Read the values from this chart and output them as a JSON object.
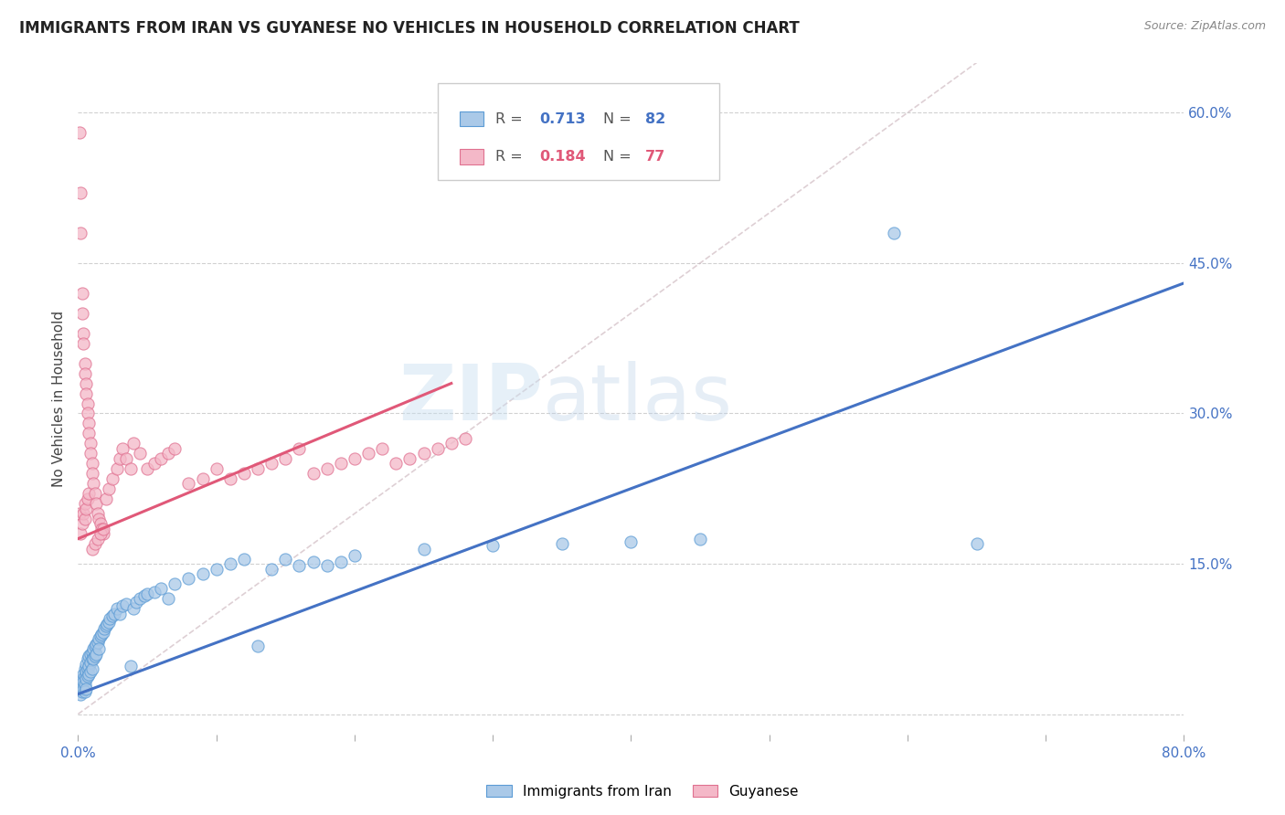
{
  "title": "IMMIGRANTS FROM IRAN VS GUYANESE NO VEHICLES IN HOUSEHOLD CORRELATION CHART",
  "source": "Source: ZipAtlas.com",
  "ylabel": "No Vehicles in Household",
  "color_blue": "#aac9e8",
  "color_blue_dark": "#5b9bd5",
  "color_blue_line": "#4472c4",
  "color_pink": "#f4b8c8",
  "color_pink_dark": "#e07090",
  "color_pink_line": "#e05878",
  "color_diag": "#c8b0b8",
  "watermark_zip": "ZIP",
  "watermark_atlas": "atlas",
  "xlim": [
    0.0,
    0.8
  ],
  "ylim": [
    -0.02,
    0.65
  ],
  "blue_line_x": [
    0.0,
    0.8
  ],
  "blue_line_y": [
    0.02,
    0.43
  ],
  "pink_line_x": [
    0.0,
    0.27
  ],
  "pink_line_y": [
    0.175,
    0.33
  ],
  "diag_line_x": [
    0.0,
    0.65
  ],
  "diag_line_y": [
    0.0,
    0.65
  ],
  "blue_scatter_x": [
    0.001,
    0.002,
    0.002,
    0.003,
    0.003,
    0.003,
    0.004,
    0.004,
    0.004,
    0.005,
    0.005,
    0.005,
    0.005,
    0.006,
    0.006,
    0.006,
    0.006,
    0.007,
    0.007,
    0.007,
    0.008,
    0.008,
    0.008,
    0.009,
    0.009,
    0.009,
    0.01,
    0.01,
    0.01,
    0.011,
    0.011,
    0.012,
    0.012,
    0.013,
    0.013,
    0.014,
    0.015,
    0.015,
    0.016,
    0.017,
    0.018,
    0.019,
    0.02,
    0.021,
    0.022,
    0.023,
    0.025,
    0.026,
    0.028,
    0.03,
    0.032,
    0.035,
    0.038,
    0.04,
    0.042,
    0.045,
    0.048,
    0.05,
    0.055,
    0.06,
    0.065,
    0.07,
    0.08,
    0.09,
    0.1,
    0.11,
    0.12,
    0.13,
    0.14,
    0.15,
    0.16,
    0.17,
    0.18,
    0.19,
    0.2,
    0.25,
    0.3,
    0.35,
    0.4,
    0.45,
    0.59,
    0.65
  ],
  "blue_scatter_y": [
    0.025,
    0.03,
    0.02,
    0.035,
    0.028,
    0.022,
    0.04,
    0.032,
    0.025,
    0.045,
    0.038,
    0.03,
    0.022,
    0.05,
    0.042,
    0.035,
    0.025,
    0.055,
    0.045,
    0.038,
    0.058,
    0.048,
    0.04,
    0.06,
    0.052,
    0.042,
    0.062,
    0.055,
    0.045,
    0.065,
    0.055,
    0.068,
    0.058,
    0.07,
    0.06,
    0.072,
    0.075,
    0.065,
    0.078,
    0.08,
    0.082,
    0.085,
    0.088,
    0.09,
    0.092,
    0.095,
    0.098,
    0.1,
    0.105,
    0.1,
    0.108,
    0.11,
    0.048,
    0.105,
    0.112,
    0.115,
    0.118,
    0.12,
    0.122,
    0.125,
    0.115,
    0.13,
    0.135,
    0.14,
    0.145,
    0.15,
    0.155,
    0.068,
    0.145,
    0.155,
    0.148,
    0.152,
    0.148,
    0.152,
    0.158,
    0.165,
    0.168,
    0.17,
    0.172,
    0.175,
    0.48,
    0.17
  ],
  "pink_scatter_x": [
    0.001,
    0.001,
    0.002,
    0.002,
    0.002,
    0.003,
    0.003,
    0.003,
    0.004,
    0.004,
    0.004,
    0.005,
    0.005,
    0.005,
    0.005,
    0.006,
    0.006,
    0.006,
    0.007,
    0.007,
    0.007,
    0.008,
    0.008,
    0.008,
    0.009,
    0.009,
    0.01,
    0.01,
    0.011,
    0.012,
    0.013,
    0.014,
    0.015,
    0.016,
    0.017,
    0.018,
    0.02,
    0.022,
    0.025,
    0.028,
    0.03,
    0.032,
    0.035,
    0.038,
    0.04,
    0.045,
    0.05,
    0.055,
    0.06,
    0.065,
    0.07,
    0.08,
    0.09,
    0.1,
    0.11,
    0.12,
    0.13,
    0.14,
    0.15,
    0.16,
    0.17,
    0.18,
    0.19,
    0.2,
    0.21,
    0.22,
    0.23,
    0.24,
    0.25,
    0.26,
    0.27,
    0.28,
    0.01,
    0.012,
    0.014,
    0.016,
    0.018
  ],
  "pink_scatter_y": [
    0.2,
    0.58,
    0.52,
    0.48,
    0.18,
    0.42,
    0.4,
    0.19,
    0.38,
    0.37,
    0.2,
    0.35,
    0.34,
    0.21,
    0.195,
    0.33,
    0.32,
    0.205,
    0.31,
    0.3,
    0.215,
    0.29,
    0.28,
    0.22,
    0.27,
    0.26,
    0.25,
    0.24,
    0.23,
    0.22,
    0.21,
    0.2,
    0.195,
    0.19,
    0.185,
    0.18,
    0.215,
    0.225,
    0.235,
    0.245,
    0.255,
    0.265,
    0.255,
    0.245,
    0.27,
    0.26,
    0.245,
    0.25,
    0.255,
    0.26,
    0.265,
    0.23,
    0.235,
    0.245,
    0.235,
    0.24,
    0.245,
    0.25,
    0.255,
    0.265,
    0.24,
    0.245,
    0.25,
    0.255,
    0.26,
    0.265,
    0.25,
    0.255,
    0.26,
    0.265,
    0.27,
    0.275,
    0.165,
    0.17,
    0.175,
    0.18,
    0.185
  ]
}
